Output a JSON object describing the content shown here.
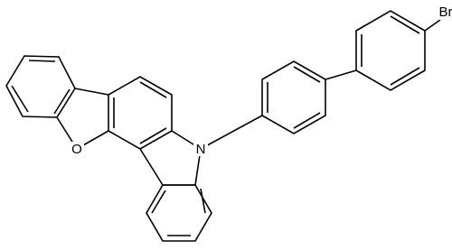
{
  "atoms": {
    "oxygen": "O",
    "nitrogen": "N",
    "bromine": "Br"
  }
}
